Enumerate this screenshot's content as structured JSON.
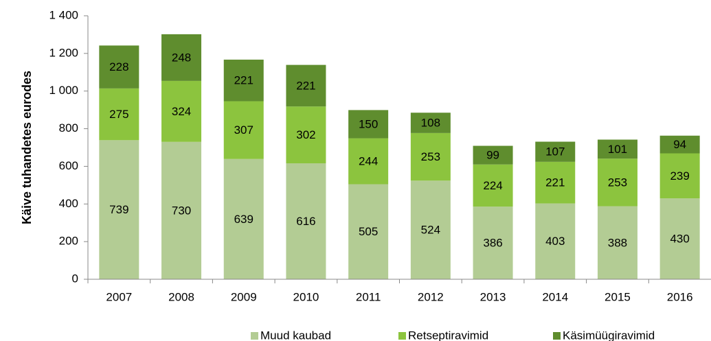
{
  "chart_data": {
    "type": "stacked_bar",
    "y_label": "Käive tuhandetes eurodes",
    "categories": [
      "2007",
      "2008",
      "2009",
      "2010",
      "2011",
      "2012",
      "2013",
      "2014",
      "2015",
      "2016"
    ],
    "series": [
      {
        "name": "Muud kaubad",
        "color": "#b3cc94",
        "values": [
          739,
          730,
          639,
          616,
          505,
          524,
          386,
          403,
          388,
          430
        ]
      },
      {
        "name": "Retseptiravimid",
        "color": "#8cc43e",
        "values": [
          275,
          324,
          307,
          302,
          244,
          253,
          224,
          221,
          253,
          239
        ]
      },
      {
        "name": "Käsimüügiravimid",
        "color": "#5f8d2e",
        "values": [
          228,
          248,
          221,
          221,
          150,
          108,
          99,
          107,
          101,
          94
        ]
      }
    ],
    "ylim": [
      0,
      1400
    ],
    "yticks": [
      0,
      200,
      400,
      600,
      800,
      {
        "value": 1000,
        "label": "1 000"
      },
      {
        "value": 1200,
        "label": "1 200"
      },
      {
        "value": 1400,
        "label": "1 400"
      }
    ],
    "legend": "bottom"
  }
}
